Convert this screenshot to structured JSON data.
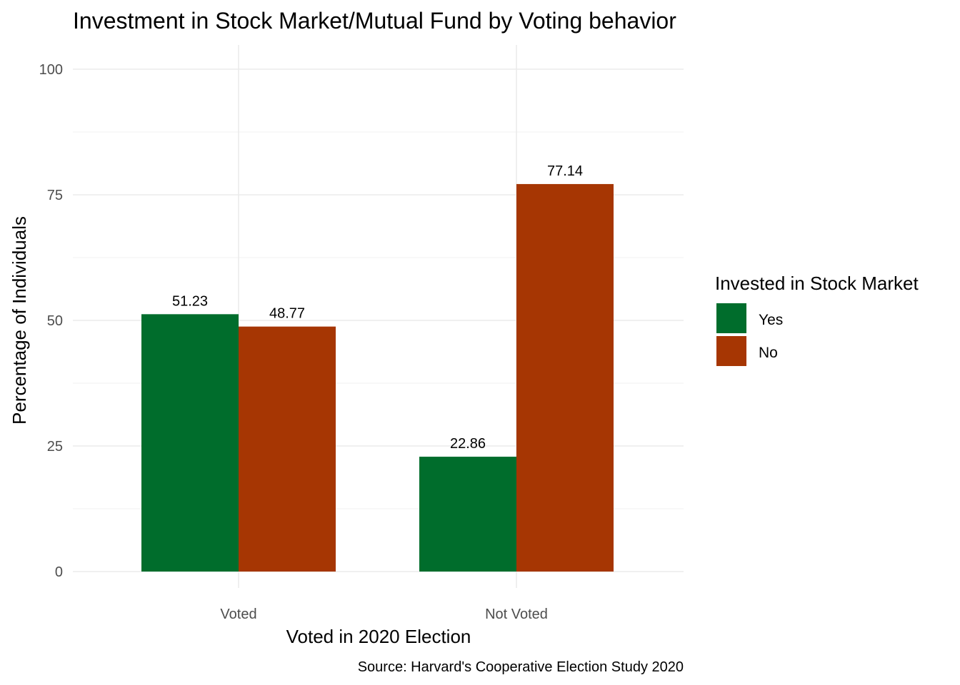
{
  "chart_data": {
    "type": "bar",
    "title": "Investment in Stock Market/Mutual Fund by Voting behavior",
    "xlabel": "Voted in 2020 Election",
    "ylabel": "Percentage of Individuals",
    "caption": "Source: Harvard's Cooperative Election Study 2020",
    "categories": [
      "Voted",
      "Not Voted"
    ],
    "series": [
      {
        "name": "Yes",
        "color": "#006d2c",
        "values": [
          51.23,
          22.86
        ]
      },
      {
        "name": "No",
        "color": "#a63603",
        "values": [
          48.77,
          77.14
        ]
      }
    ],
    "data_labels": [
      [
        "51.23",
        "22.86"
      ],
      [
        "48.77",
        "77.14"
      ]
    ],
    "ylim": [
      0,
      100
    ],
    "yticks": [
      0,
      25,
      50,
      75,
      100
    ],
    "ytick_labels": [
      "0",
      "25",
      "50",
      "75",
      "100"
    ],
    "grid": true,
    "legend": {
      "title": "Invested in Stock Market",
      "placement": "right"
    }
  }
}
